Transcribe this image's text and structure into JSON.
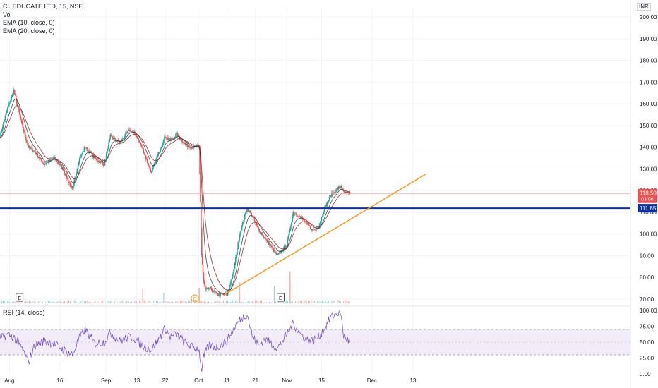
{
  "header": {
    "symbol": "CL EDUCATE LTD, 15, NSE",
    "indicators": [
      "Vol",
      "EMA (10, close, 0)",
      "EMA (20, close, 0)"
    ],
    "currency": "INR"
  },
  "rsi_panel": {
    "title": "RSI (14, close)"
  },
  "price_labels": {
    "last": "118.50",
    "countdown": "03:06",
    "support": "111.85"
  },
  "markers": {
    "earnings": "E",
    "dividend": "D"
  },
  "colors": {
    "up": "#26a69a",
    "down": "#ef5350",
    "ema": "#2f2f2f",
    "support": "#0d2fa8",
    "trend": "#f59b22",
    "rsi": "#7e57c2",
    "rsi_band": "#ede7f6",
    "last_price": "#ef5350"
  },
  "chart_data": [
    {
      "type": "line",
      "name": "price",
      "x_ticks": [
        "Aug",
        "16",
        "Sep",
        "13",
        "22",
        "Oct",
        "11",
        "21",
        "Nov",
        "15",
        "Dec",
        "13"
      ],
      "y_ticks": [
        "70.00",
        "80.00",
        "90.00",
        "100.00",
        "110.00",
        "120.00",
        "130.00",
        "140.00",
        "150.00",
        "160.00",
        "170.00",
        "180.00",
        "190.00",
        "200.00"
      ],
      "ylim": [
        68,
        202
      ],
      "support_level": 111.85,
      "last_price": 118.5,
      "trendline": {
        "from": [
          0.356,
          72
        ],
        "to": [
          0.675,
          127.5
        ]
      },
      "t": [
        0.0,
        0.012,
        0.022,
        0.035,
        0.045,
        0.055,
        0.07,
        0.085,
        0.1,
        0.115,
        0.125,
        0.135,
        0.15,
        0.165,
        0.175,
        0.19,
        0.205,
        0.215,
        0.225,
        0.24,
        0.255,
        0.262,
        0.27,
        0.28,
        0.295,
        0.305,
        0.316,
        0.318,
        0.32,
        0.323,
        0.326,
        0.332,
        0.345,
        0.36,
        0.37,
        0.38,
        0.392,
        0.4,
        0.41,
        0.42,
        0.43,
        0.44,
        0.455,
        0.465,
        0.475,
        0.485,
        0.495,
        0.505,
        0.515,
        0.525,
        0.54,
        0.545,
        0.555
      ],
      "values": [
        145,
        158,
        166,
        150,
        140,
        138,
        132,
        135,
        130,
        120,
        134,
        140,
        135,
        132,
        145,
        142,
        148,
        146,
        140,
        128,
        140,
        145,
        143,
        146,
        141,
        140,
        140,
        115,
        90,
        78,
        74,
        75,
        72,
        72,
        82,
        100,
        112,
        108,
        102,
        98,
        94,
        90,
        95,
        110,
        108,
        105,
        102,
        103,
        112,
        118,
        122,
        119,
        118.5
      ]
    },
    {
      "type": "line",
      "name": "RSI (14, close)",
      "y_ticks": [
        "0.00",
        "25.00",
        "50.00",
        "75.00",
        "100.00"
      ],
      "ylim": [
        0,
        100
      ],
      "bands": [
        30,
        70
      ],
      "midline": 50,
      "t": [
        0.0,
        0.012,
        0.022,
        0.035,
        0.045,
        0.055,
        0.07,
        0.085,
        0.1,
        0.115,
        0.125,
        0.135,
        0.15,
        0.165,
        0.175,
        0.19,
        0.205,
        0.215,
        0.225,
        0.24,
        0.255,
        0.262,
        0.27,
        0.28,
        0.295,
        0.305,
        0.316,
        0.318,
        0.32,
        0.323,
        0.326,
        0.332,
        0.345,
        0.36,
        0.37,
        0.38,
        0.392,
        0.4,
        0.41,
        0.42,
        0.43,
        0.44,
        0.455,
        0.465,
        0.475,
        0.485,
        0.495,
        0.505,
        0.515,
        0.525,
        0.54,
        0.545,
        0.555
      ],
      "values": [
        55,
        62,
        58,
        40,
        18,
        45,
        52,
        48,
        38,
        30,
        55,
        70,
        48,
        50,
        65,
        52,
        58,
        55,
        45,
        38,
        60,
        72,
        58,
        62,
        48,
        42,
        40,
        15,
        8,
        25,
        35,
        45,
        42,
        52,
        70,
        85,
        95,
        60,
        45,
        55,
        48,
        40,
        62,
        80,
        65,
        55,
        52,
        58,
        72,
        90,
        98,
        60,
        50
      ]
    }
  ]
}
